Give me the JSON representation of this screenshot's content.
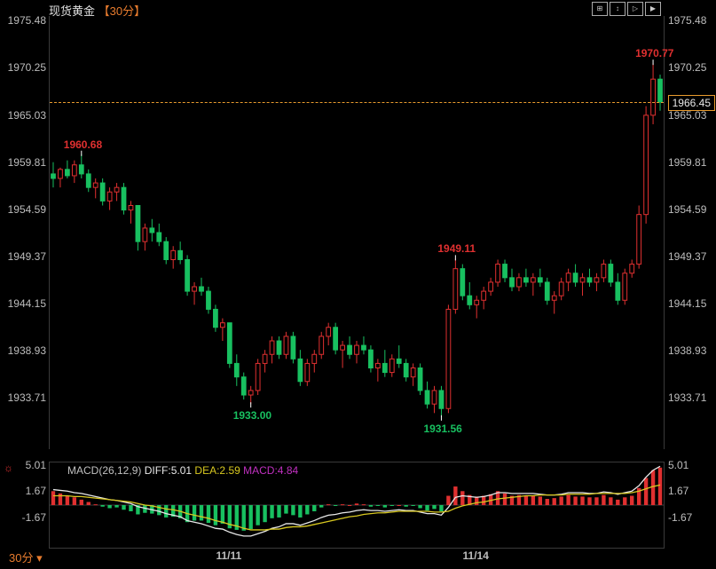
{
  "title": "现货黄金",
  "period_label": "【30分】",
  "footer_period": "30分",
  "toolbar_icons": [
    "⊞",
    "↕",
    "▷",
    "▶"
  ],
  "colors": {
    "background": "#000000",
    "up": "#e03030",
    "down": "#18c060",
    "axis_text": "#bdbdbd",
    "grid": "#3a3a3a",
    "price_line": "#e89b2e",
    "accent": "#e87c2e",
    "diff_line": "#e8e8e8",
    "dea_line": "#d8c820",
    "macd_label": "#c030c0"
  },
  "price_chart": {
    "ylim": [
      1928.0,
      1976.0
    ],
    "y_ticks": [
      1975.48,
      1970.25,
      1965.03,
      1959.81,
      1954.59,
      1949.37,
      1944.15,
      1938.93,
      1933.71
    ],
    "current_price": 1966.45,
    "annotations": [
      {
        "label": "1960.68",
        "x_idx": 4,
        "y": 1960.68,
        "cls": "ann-red",
        "above": true
      },
      {
        "label": "1970.77",
        "x_idx": 85,
        "y": 1970.77,
        "cls": "ann-red",
        "above": true
      },
      {
        "label": "1949.11",
        "x_idx": 57,
        "y": 1949.11,
        "cls": "ann-red",
        "above": true
      },
      {
        "label": "1933.00",
        "x_idx": 28,
        "y": 1933.0,
        "cls": "ann-green",
        "above": false
      },
      {
        "label": "1931.56",
        "x_idx": 55,
        "y": 1931.56,
        "cls": "ann-green",
        "above": false
      }
    ],
    "candles": [
      {
        "o": 1958.5,
        "h": 1959.8,
        "l": 1957.0,
        "c": 1958.0
      },
      {
        "o": 1958.0,
        "h": 1959.2,
        "l": 1957.0,
        "c": 1959.0
      },
      {
        "o": 1959.0,
        "h": 1960.0,
        "l": 1958.0,
        "c": 1958.3
      },
      {
        "o": 1958.3,
        "h": 1960.0,
        "l": 1957.5,
        "c": 1959.5
      },
      {
        "o": 1959.5,
        "h": 1960.68,
        "l": 1958.0,
        "c": 1958.5
      },
      {
        "o": 1958.5,
        "h": 1959.0,
        "l": 1956.5,
        "c": 1957.0
      },
      {
        "o": 1957.0,
        "h": 1958.0,
        "l": 1955.8,
        "c": 1957.5
      },
      {
        "o": 1957.5,
        "h": 1958.0,
        "l": 1955.0,
        "c": 1955.5
      },
      {
        "o": 1955.5,
        "h": 1957.0,
        "l": 1954.5,
        "c": 1956.5
      },
      {
        "o": 1956.5,
        "h": 1957.5,
        "l": 1955.5,
        "c": 1957.0
      },
      {
        "o": 1957.0,
        "h": 1957.5,
        "l": 1954.0,
        "c": 1954.5
      },
      {
        "o": 1954.5,
        "h": 1955.5,
        "l": 1953.0,
        "c": 1955.0
      },
      {
        "o": 1955.0,
        "h": 1955.0,
        "l": 1950.0,
        "c": 1951.0
      },
      {
        "o": 1951.0,
        "h": 1953.0,
        "l": 1950.0,
        "c": 1952.5
      },
      {
        "o": 1952.5,
        "h": 1953.5,
        "l": 1951.0,
        "c": 1952.0
      },
      {
        "o": 1952.0,
        "h": 1953.0,
        "l": 1950.5,
        "c": 1951.0
      },
      {
        "o": 1951.0,
        "h": 1951.5,
        "l": 1948.5,
        "c": 1949.0
      },
      {
        "o": 1949.0,
        "h": 1950.5,
        "l": 1948.0,
        "c": 1950.0
      },
      {
        "o": 1950.0,
        "h": 1951.0,
        "l": 1948.5,
        "c": 1949.0
      },
      {
        "o": 1949.0,
        "h": 1949.5,
        "l": 1945.0,
        "c": 1945.5
      },
      {
        "o": 1945.5,
        "h": 1946.5,
        "l": 1944.0,
        "c": 1946.0
      },
      {
        "o": 1946.0,
        "h": 1947.0,
        "l": 1945.0,
        "c": 1945.5
      },
      {
        "o": 1945.5,
        "h": 1946.0,
        "l": 1943.0,
        "c": 1943.5
      },
      {
        "o": 1943.5,
        "h": 1944.0,
        "l": 1941.0,
        "c": 1941.5
      },
      {
        "o": 1941.5,
        "h": 1942.5,
        "l": 1940.0,
        "c": 1942.0
      },
      {
        "o": 1942.0,
        "h": 1942.0,
        "l": 1937.0,
        "c": 1937.5
      },
      {
        "o": 1937.5,
        "h": 1938.5,
        "l": 1935.0,
        "c": 1936.0
      },
      {
        "o": 1936.0,
        "h": 1936.5,
        "l": 1933.5,
        "c": 1934.0
      },
      {
        "o": 1934.0,
        "h": 1935.0,
        "l": 1933.0,
        "c": 1934.5
      },
      {
        "o": 1934.5,
        "h": 1938.0,
        "l": 1934.0,
        "c": 1937.5
      },
      {
        "o": 1937.5,
        "h": 1939.0,
        "l": 1936.5,
        "c": 1938.5
      },
      {
        "o": 1938.5,
        "h": 1940.5,
        "l": 1937.5,
        "c": 1940.0
      },
      {
        "o": 1940.0,
        "h": 1940.5,
        "l": 1938.0,
        "c": 1938.5
      },
      {
        "o": 1938.5,
        "h": 1941.0,
        "l": 1938.0,
        "c": 1940.5
      },
      {
        "o": 1940.5,
        "h": 1941.0,
        "l": 1937.5,
        "c": 1938.0
      },
      {
        "o": 1938.0,
        "h": 1939.0,
        "l": 1935.0,
        "c": 1935.5
      },
      {
        "o": 1935.5,
        "h": 1938.0,
        "l": 1935.0,
        "c": 1937.5
      },
      {
        "o": 1937.5,
        "h": 1939.0,
        "l": 1936.5,
        "c": 1938.5
      },
      {
        "o": 1938.5,
        "h": 1941.0,
        "l": 1938.0,
        "c": 1940.5
      },
      {
        "o": 1940.5,
        "h": 1942.0,
        "l": 1939.5,
        "c": 1941.5
      },
      {
        "o": 1941.5,
        "h": 1942.0,
        "l": 1938.5,
        "c": 1939.0
      },
      {
        "o": 1939.0,
        "h": 1940.0,
        "l": 1937.0,
        "c": 1939.5
      },
      {
        "o": 1939.5,
        "h": 1940.5,
        "l": 1938.0,
        "c": 1938.5
      },
      {
        "o": 1938.5,
        "h": 1940.0,
        "l": 1937.5,
        "c": 1939.5
      },
      {
        "o": 1939.5,
        "h": 1940.5,
        "l": 1938.5,
        "c": 1939.0
      },
      {
        "o": 1939.0,
        "h": 1939.5,
        "l": 1936.5,
        "c": 1937.0
      },
      {
        "o": 1937.0,
        "h": 1938.0,
        "l": 1935.5,
        "c": 1937.5
      },
      {
        "o": 1937.5,
        "h": 1939.0,
        "l": 1936.0,
        "c": 1936.5
      },
      {
        "o": 1936.5,
        "h": 1938.5,
        "l": 1936.0,
        "c": 1938.0
      },
      {
        "o": 1938.0,
        "h": 1939.5,
        "l": 1937.0,
        "c": 1937.5
      },
      {
        "o": 1937.5,
        "h": 1938.0,
        "l": 1935.5,
        "c": 1936.0
      },
      {
        "o": 1936.0,
        "h": 1937.5,
        "l": 1935.0,
        "c": 1937.0
      },
      {
        "o": 1937.0,
        "h": 1937.5,
        "l": 1934.0,
        "c": 1934.5
      },
      {
        "o": 1934.5,
        "h": 1935.5,
        "l": 1932.5,
        "c": 1933.0
      },
      {
        "o": 1933.0,
        "h": 1935.0,
        "l": 1932.0,
        "c": 1934.5
      },
      {
        "o": 1934.5,
        "h": 1935.0,
        "l": 1931.56,
        "c": 1932.5
      },
      {
        "o": 1932.5,
        "h": 1944.0,
        "l": 1932.0,
        "c": 1943.5
      },
      {
        "o": 1943.5,
        "h": 1949.11,
        "l": 1943.0,
        "c": 1948.0
      },
      {
        "o": 1948.0,
        "h": 1948.5,
        "l": 1944.5,
        "c": 1945.0
      },
      {
        "o": 1945.0,
        "h": 1946.5,
        "l": 1943.5,
        "c": 1944.0
      },
      {
        "o": 1944.0,
        "h": 1945.0,
        "l": 1942.5,
        "c": 1944.5
      },
      {
        "o": 1944.5,
        "h": 1946.0,
        "l": 1943.5,
        "c": 1945.5
      },
      {
        "o": 1945.5,
        "h": 1947.0,
        "l": 1945.0,
        "c": 1946.5
      },
      {
        "o": 1946.5,
        "h": 1949.0,
        "l": 1946.0,
        "c": 1948.5
      },
      {
        "o": 1948.5,
        "h": 1949.0,
        "l": 1946.5,
        "c": 1947.0
      },
      {
        "o": 1947.0,
        "h": 1948.0,
        "l": 1945.5,
        "c": 1946.0
      },
      {
        "o": 1946.0,
        "h": 1947.5,
        "l": 1945.5,
        "c": 1947.0
      },
      {
        "o": 1947.0,
        "h": 1948.0,
        "l": 1946.0,
        "c": 1946.5
      },
      {
        "o": 1946.5,
        "h": 1947.5,
        "l": 1945.0,
        "c": 1947.0
      },
      {
        "o": 1947.0,
        "h": 1948.0,
        "l": 1946.0,
        "c": 1946.5
      },
      {
        "o": 1946.5,
        "h": 1947.0,
        "l": 1944.0,
        "c": 1944.5
      },
      {
        "o": 1944.5,
        "h": 1945.5,
        "l": 1943.0,
        "c": 1945.0
      },
      {
        "o": 1945.0,
        "h": 1947.0,
        "l": 1944.5,
        "c": 1946.5
      },
      {
        "o": 1946.5,
        "h": 1948.0,
        "l": 1945.5,
        "c": 1947.5
      },
      {
        "o": 1947.5,
        "h": 1948.5,
        "l": 1946.0,
        "c": 1946.5
      },
      {
        "o": 1946.5,
        "h": 1947.5,
        "l": 1945.0,
        "c": 1947.0
      },
      {
        "o": 1947.0,
        "h": 1948.0,
        "l": 1946.0,
        "c": 1946.5
      },
      {
        "o": 1946.5,
        "h": 1947.5,
        "l": 1945.5,
        "c": 1947.0
      },
      {
        "o": 1947.0,
        "h": 1949.0,
        "l": 1946.5,
        "c": 1948.5
      },
      {
        "o": 1948.5,
        "h": 1949.0,
        "l": 1946.0,
        "c": 1946.5
      },
      {
        "o": 1946.5,
        "h": 1947.5,
        "l": 1944.0,
        "c": 1944.5
      },
      {
        "o": 1944.5,
        "h": 1948.0,
        "l": 1944.0,
        "c": 1947.5
      },
      {
        "o": 1947.5,
        "h": 1949.0,
        "l": 1947.0,
        "c": 1948.5
      },
      {
        "o": 1948.5,
        "h": 1955.0,
        "l": 1948.0,
        "c": 1954.0
      },
      {
        "o": 1954.0,
        "h": 1966.0,
        "l": 1953.0,
        "c": 1965.0
      },
      {
        "o": 1965.0,
        "h": 1970.77,
        "l": 1964.0,
        "c": 1969.0
      },
      {
        "o": 1969.0,
        "h": 1969.5,
        "l": 1965.5,
        "c": 1966.45
      }
    ]
  },
  "macd": {
    "label": "MACD(26,12,9)",
    "diff_label": "DIFF:5.01",
    "dea_label": "DEA:2.59",
    "macd_label": "MACD:4.84",
    "ylim": [
      -5.5,
      5.5
    ],
    "y_ticks": [
      5.01,
      1.67,
      -1.67
    ],
    "zero": 0,
    "bars": [
      1.8,
      1.5,
      1.2,
      1.0,
      0.7,
      0.4,
      0.1,
      -0.2,
      -0.4,
      -0.3,
      -0.6,
      -0.8,
      -1.2,
      -1.0,
      -1.1,
      -1.3,
      -1.6,
      -1.5,
      -1.7,
      -2.2,
      -2.0,
      -2.0,
      -2.3,
      -2.6,
      -2.4,
      -3.0,
      -3.2,
      -3.3,
      -3.1,
      -2.6,
      -2.2,
      -1.7,
      -1.6,
      -1.1,
      -1.3,
      -1.6,
      -1.2,
      -0.8,
      -0.3,
      0.1,
      -0.1,
      0.1,
      0.0,
      0.2,
      0.1,
      -0.2,
      -0.1,
      -0.3,
      -0.1,
      0.0,
      -0.2,
      -0.1,
      -0.4,
      -0.7,
      -0.5,
      -0.8,
      1.2,
      2.4,
      1.8,
      1.3,
      1.1,
      1.2,
      1.4,
      1.8,
      1.5,
      1.2,
      1.3,
      1.2,
      1.2,
      1.1,
      0.8,
      0.9,
      1.1,
      1.3,
      1.1,
      1.1,
      1.0,
      1.0,
      1.3,
      1.0,
      0.7,
      1.0,
      1.2,
      2.2,
      3.5,
      4.5,
      4.84
    ],
    "diff": [
      2.0,
      1.9,
      1.8,
      1.6,
      1.5,
      1.3,
      1.1,
      0.9,
      0.7,
      0.6,
      0.4,
      0.2,
      -0.2,
      -0.4,
      -0.6,
      -0.8,
      -1.1,
      -1.3,
      -1.5,
      -2.0,
      -2.2,
      -2.4,
      -2.7,
      -3.0,
      -3.1,
      -3.5,
      -3.8,
      -4.0,
      -4.0,
      -3.7,
      -3.4,
      -3.0,
      -2.8,
      -2.4,
      -2.4,
      -2.6,
      -2.3,
      -2.0,
      -1.6,
      -1.3,
      -1.2,
      -1.0,
      -0.9,
      -0.7,
      -0.6,
      -0.7,
      -0.7,
      -0.8,
      -0.7,
      -0.6,
      -0.7,
      -0.7,
      -0.9,
      -1.1,
      -1.1,
      -1.3,
      -0.3,
      1.0,
      1.2,
      1.1,
      1.0,
      1.1,
      1.3,
      1.6,
      1.6,
      1.5,
      1.5,
      1.5,
      1.5,
      1.4,
      1.3,
      1.3,
      1.4,
      1.6,
      1.6,
      1.6,
      1.5,
      1.5,
      1.7,
      1.6,
      1.4,
      1.6,
      1.8,
      2.5,
      3.6,
      4.5,
      5.01
    ],
    "dea": [
      1.2,
      1.2,
      1.2,
      1.1,
      1.1,
      1.0,
      0.9,
      0.8,
      0.7,
      0.6,
      0.5,
      0.4,
      0.2,
      0.0,
      -0.1,
      -0.3,
      -0.5,
      -0.6,
      -0.8,
      -1.1,
      -1.3,
      -1.5,
      -1.7,
      -2.0,
      -2.2,
      -2.5,
      -2.7,
      -3.0,
      -3.2,
      -3.2,
      -3.2,
      -3.1,
      -3.1,
      -2.9,
      -2.8,
      -2.8,
      -2.7,
      -2.5,
      -2.3,
      -2.1,
      -1.9,
      -1.7,
      -1.5,
      -1.4,
      -1.2,
      -1.1,
      -1.0,
      -1.0,
      -0.9,
      -0.8,
      -0.8,
      -0.8,
      -0.8,
      -0.8,
      -0.9,
      -0.9,
      -0.8,
      -0.4,
      -0.1,
      0.1,
      0.3,
      0.4,
      0.6,
      0.8,
      0.9,
      1.0,
      1.1,
      1.2,
      1.2,
      1.3,
      1.3,
      1.3,
      1.3,
      1.4,
      1.4,
      1.4,
      1.4,
      1.5,
      1.5,
      1.5,
      1.5,
      1.5,
      1.6,
      1.8,
      2.1,
      2.4,
      2.59
    ]
  },
  "x_axis": {
    "ticks": [
      {
        "label": "11/11",
        "idx": 25
      },
      {
        "label": "11/14",
        "idx": 60
      }
    ]
  }
}
